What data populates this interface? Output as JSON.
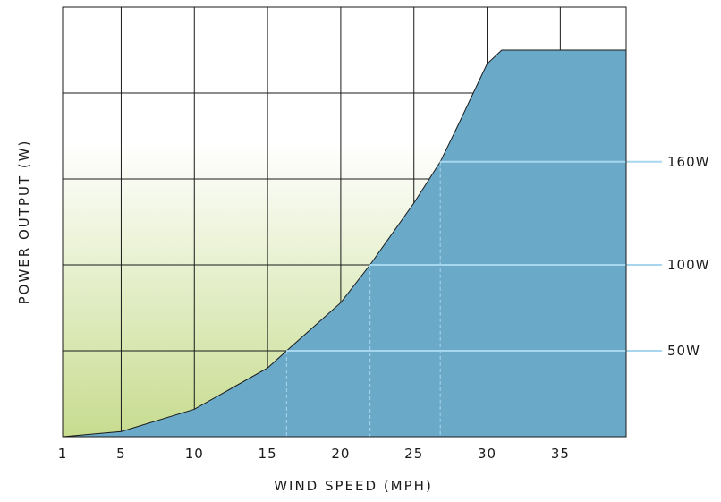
{
  "chart_data": {
    "type": "area",
    "title": "",
    "xlabel": "WIND SPEED (MPH)",
    "ylabel": "POWER OUTPUT (W)",
    "xlim": [
      1,
      39.5
    ],
    "x_ticks": [
      "1",
      "5",
      "10",
      "15",
      "20",
      "25",
      "30",
      "35"
    ],
    "x_tick_values": [
      1,
      5,
      10,
      15,
      20,
      25,
      30,
      35
    ],
    "ylim": [
      0,
      240
    ],
    "y_gridlines": [
      0,
      50,
      100,
      150,
      200,
      250
    ],
    "grid": true,
    "series": [
      {
        "x": [
          1,
          5,
          10,
          15,
          16.3,
          20,
          22,
          25,
          26.8,
          28,
          30,
          31
        ],
        "y": [
          0,
          3,
          16,
          40,
          50,
          78,
          100,
          136,
          160,
          181,
          217,
          225
        ]
      }
    ],
    "plateau": {
      "x_start": 31,
      "x_end": 39,
      "y": 225
    },
    "reference_lines": [
      {
        "label": "50W",
        "y": 50,
        "x": 16.3
      },
      {
        "label": "100W",
        "y": 100,
        "x": 22
      },
      {
        "label": "160W",
        "y": 160,
        "x": 26.8
      }
    ],
    "colors": {
      "fill": "#6ba9c9",
      "grid": "#1a1a1a",
      "reference_line": "#a7d7ee",
      "gradient_bottom": "#c7dc8f",
      "gradient_top": "#ffffff"
    }
  }
}
